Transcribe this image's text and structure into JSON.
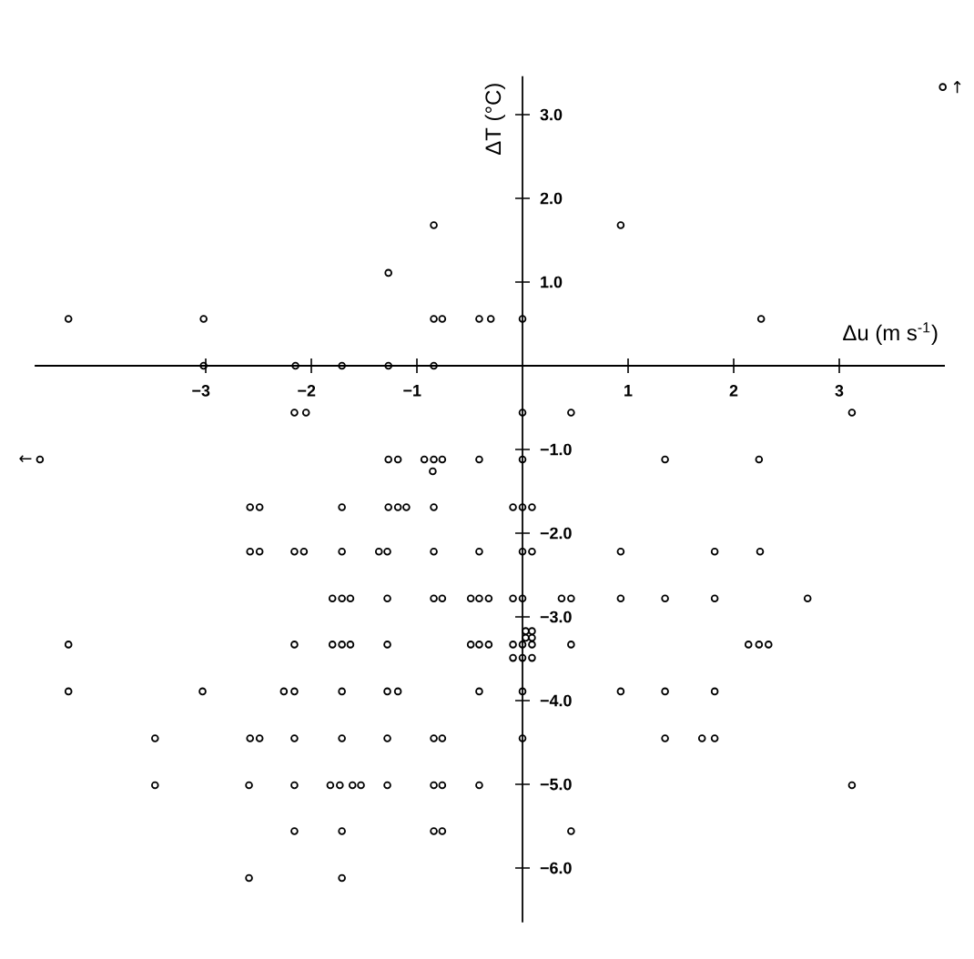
{
  "chart_data": {
    "type": "scatter",
    "xlabel": "Δu  (m s$^{-1}$)",
    "ylabel": "ΔT  (°C)",
    "xlim": [
      -4.62,
      4.0
    ],
    "ylim": [
      -6.65,
      3.46
    ],
    "xticks": [
      {
        "value": -3,
        "label": "−3"
      },
      {
        "value": -2,
        "label": "−2"
      },
      {
        "value": -1,
        "label": "−1"
      },
      {
        "value": 0,
        "label": null
      },
      {
        "value": 1,
        "label": "1"
      },
      {
        "value": 2,
        "label": "2"
      },
      {
        "value": 3,
        "label": "3"
      }
    ],
    "yticks": [
      {
        "value": -6,
        "label": "−6.0"
      },
      {
        "value": -5,
        "label": "−5.0"
      },
      {
        "value": -4,
        "label": "−4.0"
      },
      {
        "value": -3,
        "label": "−3.0"
      },
      {
        "value": -2,
        "label": "−2.0"
      },
      {
        "value": -1,
        "label": "−1.0"
      },
      {
        "value": 0,
        "label": null
      },
      {
        "value": 1,
        "label": "1.0"
      },
      {
        "value": 2,
        "label": "2.0"
      },
      {
        "value": 3,
        "label": "3.0"
      }
    ],
    "marker": "circle",
    "grid": false,
    "annotations": [
      {
        "text": "↑",
        "x": 3.98,
        "y": 3.33
      },
      {
        "text": "←",
        "x": -4.57,
        "y": -1.12
      }
    ],
    "series": [
      {
        "color": "#000000",
        "x": [
          3.98,
          -0.84,
          0.93,
          -1.27,
          -4.3,
          -3.02,
          -0.84,
          -0.76,
          -0.41,
          -0.3,
          0,
          2.26,
          -3.02,
          -2.15,
          -1.71,
          -1.27,
          -0.84,
          -2.16,
          -2.05,
          0,
          0.46,
          3.12,
          -4.57,
          -1.27,
          -1.18,
          -0.93,
          -0.84,
          -0.76,
          -0.41,
          0,
          1.35,
          2.24,
          -0.85,
          -2.58,
          -2.49,
          -1.71,
          -1.27,
          -1.18,
          -1.1,
          -0.84,
          -0.09,
          0,
          0.09,
          -2.58,
          -2.49,
          -2.16,
          -2.07,
          -1.71,
          -1.36,
          -1.28,
          -0.84,
          -0.41,
          0,
          0.09,
          0.93,
          1.82,
          2.25,
          -1.8,
          -1.71,
          -1.63,
          -1.28,
          -0.84,
          -0.76,
          -0.49,
          -0.41,
          -0.32,
          -0.09,
          0,
          0.37,
          0.46,
          0.93,
          1.35,
          1.82,
          2.7,
          0.03,
          0.09,
          0.03,
          0.09,
          -4.3,
          -2.16,
          -1.8,
          -1.71,
          -1.63,
          -1.28,
          -0.49,
          -0.41,
          -0.32,
          -0.09,
          0,
          0.09,
          0.46,
          2.14,
          2.24,
          2.33,
          -0.09,
          0,
          0.09,
          -4.3,
          -3.03,
          -2.26,
          -2.16,
          -1.71,
          -1.28,
          -1.18,
          -0.41,
          0,
          0.93,
          1.35,
          1.82,
          -3.48,
          -2.58,
          -2.49,
          -2.16,
          -1.71,
          -1.28,
          -0.84,
          -0.76,
          0,
          1.35,
          1.7,
          1.82,
          -3.48,
          -2.59,
          -2.16,
          -1.82,
          -1.73,
          -1.61,
          -1.53,
          -1.28,
          -0.84,
          -0.76,
          -0.41,
          3.12,
          -2.16,
          -1.71,
          -0.84,
          -0.76,
          0.46,
          -2.59,
          -1.71
        ],
        "values": [
          3.33,
          1.68,
          1.68,
          1.11,
          0.56,
          0.56,
          0.56,
          0.56,
          0.56,
          0.56,
          0.56,
          0.56,
          0,
          0,
          0,
          0,
          0,
          -0.56,
          -0.56,
          -0.56,
          -0.56,
          -0.56,
          -1.12,
          -1.12,
          -1.12,
          -1.12,
          -1.12,
          -1.12,
          -1.12,
          -1.12,
          -1.12,
          -1.12,
          -1.26,
          -1.69,
          -1.69,
          -1.69,
          -1.69,
          -1.69,
          -1.69,
          -1.69,
          -1.69,
          -1.69,
          -1.69,
          -2.22,
          -2.22,
          -2.22,
          -2.22,
          -2.22,
          -2.22,
          -2.22,
          -2.22,
          -2.22,
          -2.22,
          -2.22,
          -2.22,
          -2.22,
          -2.22,
          -2.78,
          -2.78,
          -2.78,
          -2.78,
          -2.78,
          -2.78,
          -2.78,
          -2.78,
          -2.78,
          -2.78,
          -2.78,
          -2.78,
          -2.78,
          -2.78,
          -2.78,
          -2.78,
          -2.78,
          -3.17,
          -3.17,
          -3.25,
          -3.25,
          -3.33,
          -3.33,
          -3.33,
          -3.33,
          -3.33,
          -3.33,
          -3.33,
          -3.33,
          -3.33,
          -3.33,
          -3.33,
          -3.33,
          -3.33,
          -3.33,
          -3.33,
          -3.33,
          -3.49,
          -3.49,
          -3.49,
          -3.89,
          -3.89,
          -3.89,
          -3.89,
          -3.89,
          -3.89,
          -3.89,
          -3.89,
          -3.89,
          -3.89,
          -3.89,
          -3.89,
          -4.45,
          -4.45,
          -4.45,
          -4.45,
          -4.45,
          -4.45,
          -4.45,
          -4.45,
          -4.45,
          -4.45,
          -4.45,
          -4.45,
          -5.01,
          -5.01,
          -5.01,
          -5.01,
          -5.01,
          -5.01,
          -5.01,
          -5.01,
          -5.01,
          -5.01,
          -5.01,
          -5.01,
          -5.56,
          -5.56,
          -5.56,
          -5.56,
          -5.56,
          -6.12,
          -6.12
        ]
      }
    ]
  }
}
